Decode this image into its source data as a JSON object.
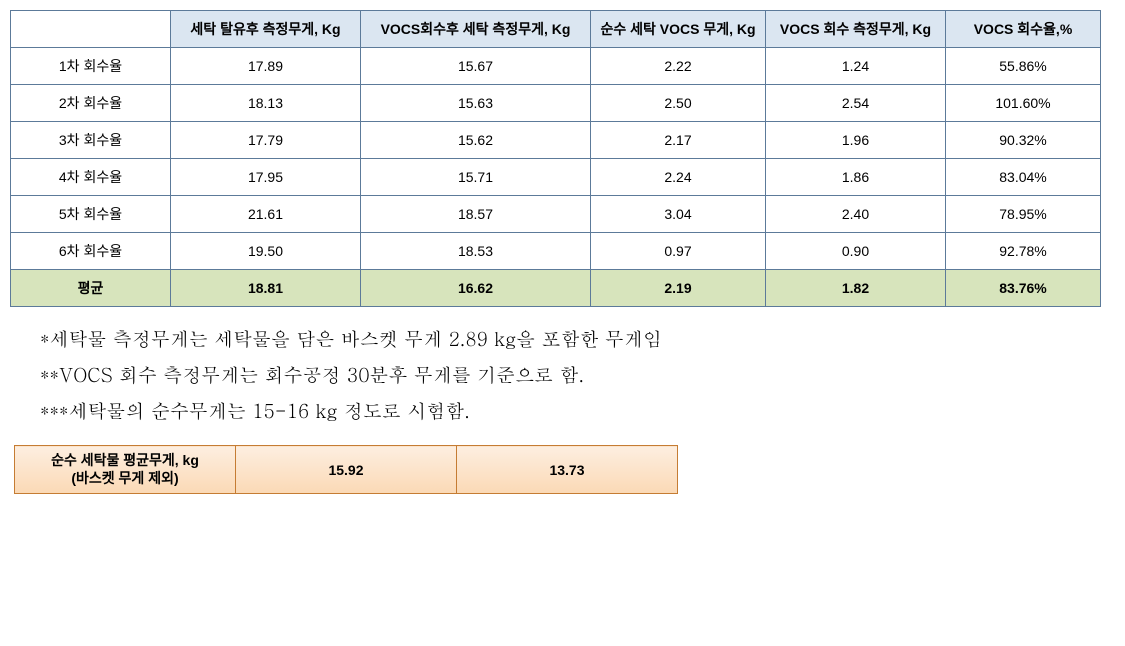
{
  "main_table": {
    "headers": [
      "",
      "세탁 탈유후 측정무게, Kg",
      "VOCS회수후 세탁 측정무게, Kg",
      "순수 세탁 VOCS 무게, Kg",
      "VOCS 회수 측정무게, Kg",
      "VOCS 회수율,%"
    ],
    "rows": [
      {
        "label": "1차 회수율",
        "c1": "17.89",
        "c2": "15.67",
        "c3": "2.22",
        "c4": "1.24",
        "c5": "55.86%"
      },
      {
        "label": "2차 회수율",
        "c1": "18.13",
        "c2": "15.63",
        "c3": "2.50",
        "c4": "2.54",
        "c5": "101.60%"
      },
      {
        "label": "3차 회수율",
        "c1": "17.79",
        "c2": "15.62",
        "c3": "2.17",
        "c4": "1.96",
        "c5": "90.32%"
      },
      {
        "label": "4차 회수율",
        "c1": "17.95",
        "c2": "15.71",
        "c3": "2.24",
        "c4": "1.86",
        "c5": "83.04%"
      },
      {
        "label": "5차 회수율",
        "c1": "21.61",
        "c2": "18.57",
        "c3": "3.04",
        "c4": "2.40",
        "c5": "78.95%"
      },
      {
        "label": "6차 회수율",
        "c1": "19.50",
        "c2": "18.53",
        "c3": "0.97",
        "c4": "0.90",
        "c5": "92.78%"
      }
    ],
    "average": {
      "label": "평균",
      "c1": "18.81",
      "c2": "16.62",
      "c3": "2.19",
      "c4": "1.82",
      "c5": "83.76%"
    },
    "header_bg": "#dbe6f1",
    "avg_bg": "#d7e4bc",
    "border_color": "#5c7a99",
    "font_size": 14
  },
  "notes": {
    "n1": "*세탁물 측정무게는 세탁물을 담은 바스켓 무게 2.89 kg을 포함한 무게임",
    "n2": "**VOCS 회수 측정무게는 회수공정 30분후 무게를 기준으로 함.",
    "n3": "***세탁물의 순수무게는 15-16 kg 정도로 시험함.",
    "font_size": 19,
    "color": "#000000"
  },
  "small_table": {
    "header_line1": "순수 세탁물 평균무게, kg",
    "header_line2": "(바스켓 무게 제외)",
    "v1": "15.92",
    "v2": "13.73",
    "border_color": "#c57c33",
    "bg_top": "#fdeee0",
    "bg_bottom": "#fbd9b5",
    "font_size": 14
  }
}
